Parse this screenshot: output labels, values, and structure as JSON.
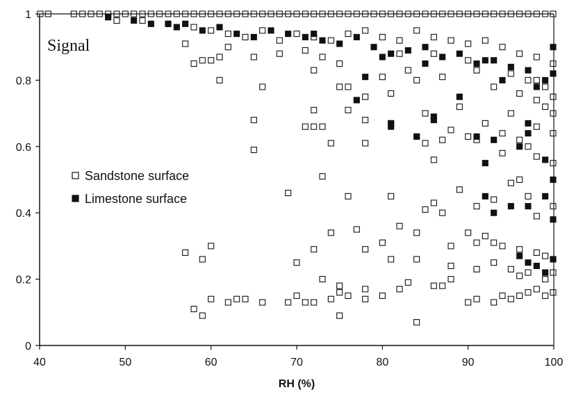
{
  "chart_data": {
    "type": "scatter",
    "title": "",
    "annotation": "Signal",
    "xlabel": "RH (%)",
    "ylabel": "",
    "xlim": [
      40,
      100
    ],
    "ylim": [
      0,
      1
    ],
    "xticks": [
      40,
      50,
      60,
      70,
      80,
      90,
      100
    ],
    "yticks": [
      0,
      0.2,
      0.4,
      0.6,
      0.8,
      1
    ],
    "ytick_labels": [
      "0",
      "0.2",
      "0.4",
      "0.6",
      "0.8",
      "1"
    ],
    "grid": false,
    "legend_position": "middle-left",
    "series": [
      {
        "name": "Sandstone surface",
        "marker": "open-square",
        "x": [
          40,
          41,
          44,
          45,
          46,
          47,
          48,
          49,
          50,
          51,
          52,
          53,
          54,
          55,
          56,
          57,
          58,
          59,
          60,
          61,
          62,
          63,
          64,
          65,
          66,
          67,
          68,
          69,
          70,
          71,
          72,
          73,
          74,
          75,
          76,
          77,
          78,
          79,
          80,
          81,
          82,
          83,
          84,
          85,
          86,
          87,
          88,
          89,
          90,
          91,
          92,
          93,
          94,
          95,
          96,
          97,
          98,
          99,
          100,
          49,
          52,
          55,
          58,
          60,
          62,
          64,
          66,
          68,
          70,
          72,
          74,
          76,
          78,
          80,
          82,
          84,
          86,
          88,
          90,
          92,
          94,
          96,
          98,
          100,
          57,
          58,
          59,
          60,
          61,
          62,
          68,
          73,
          75,
          82,
          86,
          90,
          95,
          98,
          99,
          100,
          61,
          65,
          66,
          71,
          72,
          76,
          78,
          80,
          83,
          87,
          91,
          93,
          96,
          97,
          98,
          99,
          100,
          65,
          72,
          73,
          75,
          76,
          78,
          81,
          84,
          85,
          88,
          89,
          92,
          94,
          95,
          98,
          100,
          65,
          71,
          72,
          74,
          78,
          81,
          85,
          86,
          87,
          90,
          91,
          94,
          96,
          97,
          98,
          100,
          69,
          73,
          76,
          81,
          85,
          86,
          87,
          89,
          91,
          93,
          95,
          96,
          97,
          98,
          100,
          57,
          59,
          60,
          72,
          74,
          77,
          78,
          80,
          82,
          84,
          88,
          90,
          91,
          92,
          93,
          94,
          96,
          98,
          99,
          100,
          70,
          73,
          75,
          78,
          81,
          84,
          88,
          91,
          93,
          95,
          96,
          97,
          99,
          100,
          58,
          59,
          60,
          62,
          63,
          64,
          66,
          69,
          70,
          71,
          72,
          74,
          75,
          76,
          78,
          80,
          82,
          83,
          86,
          87,
          88,
          90,
          91,
          93,
          94,
          95,
          96,
          97,
          98,
          99,
          100,
          75,
          84
        ],
        "y": [
          1,
          1,
          1,
          1,
          1,
          1,
          1,
          1,
          1,
          1,
          1,
          1,
          1,
          1,
          1,
          1,
          1,
          1,
          1,
          1,
          1,
          1,
          1,
          1,
          1,
          1,
          1,
          1,
          1,
          1,
          1,
          1,
          1,
          1,
          1,
          1,
          1,
          1,
          1,
          1,
          1,
          1,
          1,
          1,
          1,
          1,
          1,
          1,
          1,
          1,
          1,
          1,
          1,
          1,
          1,
          1,
          1,
          1,
          1,
          0.98,
          0.98,
          0.97,
          0.96,
          0.95,
          0.94,
          0.93,
          0.95,
          0.92,
          0.94,
          0.93,
          0.92,
          0.94,
          0.95,
          0.93,
          0.92,
          0.95,
          0.93,
          0.92,
          0.91,
          0.92,
          0.9,
          0.88,
          0.87,
          0.85,
          0.91,
          0.85,
          0.86,
          0.86,
          0.87,
          0.9,
          0.88,
          0.87,
          0.85,
          0.88,
          0.88,
          0.86,
          0.82,
          0.8,
          0.78,
          0.75,
          0.8,
          0.87,
          0.78,
          0.89,
          0.83,
          0.78,
          0.75,
          0.81,
          0.83,
          0.81,
          0.83,
          0.78,
          0.76,
          0.8,
          0.74,
          0.72,
          0.7,
          0.68,
          0.71,
          0.66,
          0.78,
          0.71,
          0.68,
          0.76,
          0.8,
          0.7,
          0.65,
          0.72,
          0.67,
          0.64,
          0.7,
          0.66,
          0.64,
          0.59,
          0.66,
          0.66,
          0.61,
          0.61,
          0.67,
          0.61,
          0.56,
          0.62,
          0.63,
          0.62,
          0.58,
          0.62,
          0.6,
          0.57,
          0.55,
          0.46,
          0.51,
          0.45,
          0.45,
          0.41,
          0.43,
          0.4,
          0.47,
          0.42,
          0.44,
          0.49,
          0.5,
          0.45,
          0.39,
          0.42,
          0.28,
          0.26,
          0.3,
          0.29,
          0.34,
          0.35,
          0.29,
          0.31,
          0.36,
          0.34,
          0.3,
          0.34,
          0.31,
          0.33,
          0.31,
          0.3,
          0.29,
          0.28,
          0.27,
          0.26,
          0.25,
          0.2,
          0.18,
          0.17,
          0.26,
          0.26,
          0.24,
          0.23,
          0.25,
          0.23,
          0.21,
          0.22,
          0.2,
          0.22,
          0.11,
          0.09,
          0.14,
          0.13,
          0.14,
          0.14,
          0.13,
          0.13,
          0.15,
          0.13,
          0.13,
          0.14,
          0.16,
          0.15,
          0.14,
          0.15,
          0.17,
          0.19,
          0.18,
          0.18,
          0.2,
          0.13,
          0.14,
          0.13,
          0.15,
          0.14,
          0.15,
          0.16,
          0.17,
          0.15,
          0.16,
          0.09,
          0.07
        ]
      },
      {
        "name": "Limestone surface",
        "marker": "filled-square",
        "x": [
          48,
          51,
          53,
          55,
          56,
          57,
          59,
          61,
          63,
          65,
          67,
          69,
          71,
          73,
          75,
          77,
          79,
          81,
          83,
          85,
          87,
          89,
          91,
          93,
          95,
          97,
          99,
          100,
          72,
          77,
          80,
          81,
          84,
          85,
          86,
          89,
          92,
          94,
          97,
          98,
          100,
          78,
          81,
          84,
          86,
          91,
          92,
          93,
          96,
          97,
          99,
          100,
          92,
          93,
          95,
          97,
          99,
          100,
          96,
          97,
          98,
          99,
          100
        ],
        "y": [
          0.99,
          0.98,
          0.97,
          0.97,
          0.96,
          0.97,
          0.95,
          0.96,
          0.94,
          0.93,
          0.95,
          0.94,
          0.93,
          0.92,
          0.91,
          0.93,
          0.9,
          0.88,
          0.89,
          0.9,
          0.87,
          0.88,
          0.85,
          0.86,
          0.84,
          0.83,
          0.8,
          0.82,
          0.94,
          0.74,
          0.87,
          0.67,
          0.63,
          0.85,
          0.69,
          0.75,
          0.86,
          0.8,
          0.67,
          0.78,
          0.9,
          0.81,
          0.66,
          0.63,
          0.68,
          0.63,
          0.55,
          0.62,
          0.6,
          0.64,
          0.56,
          0.5,
          0.45,
          0.4,
          0.42,
          0.42,
          0.45,
          0.38,
          0.27,
          0.25,
          0.24,
          0.22,
          0.26
        ]
      }
    ]
  },
  "legend": {
    "items": [
      {
        "label": "Sandstone surface",
        "marker": "open-square"
      },
      {
        "label": "Limestone surface",
        "marker": "filled-square"
      }
    ]
  }
}
